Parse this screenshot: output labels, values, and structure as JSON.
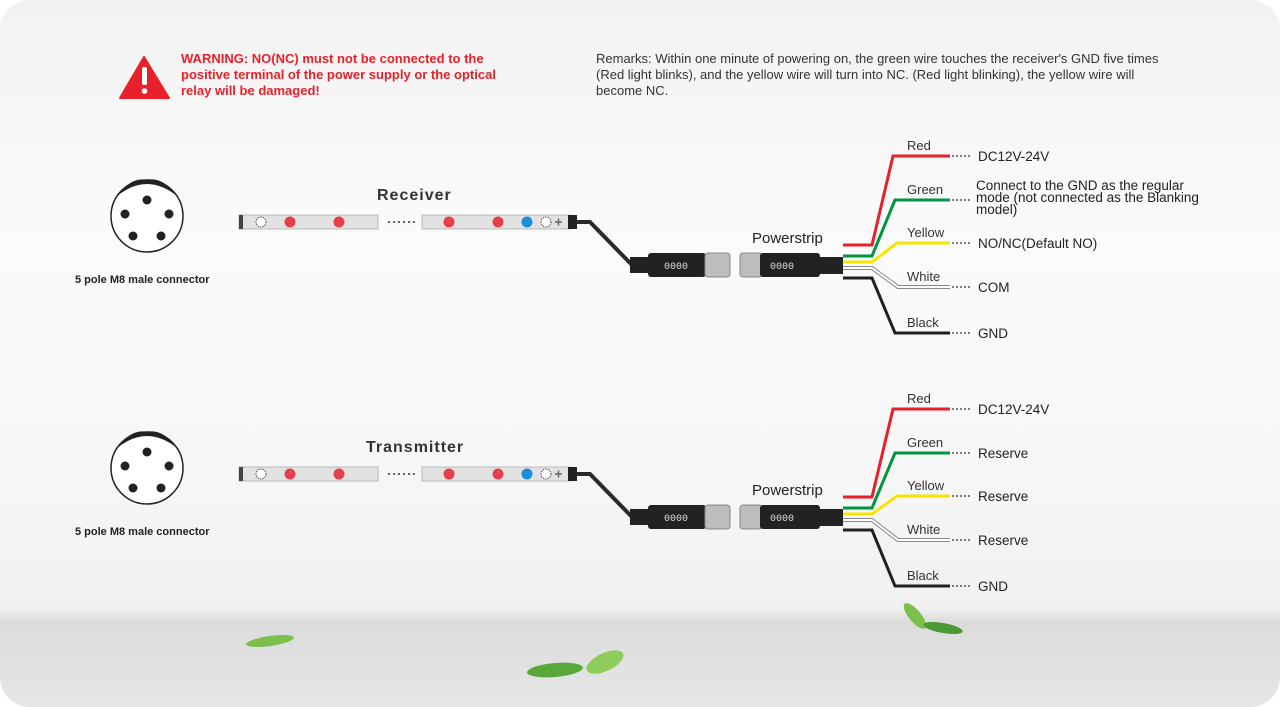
{
  "warning": {
    "icon": "warning-triangle-icon",
    "color": "#e8202a",
    "lines": [
      "WARNING: NO(NC)  must not be connected to the",
      "positive terminal of the power supply or the optical",
      "relay will be damaged!"
    ]
  },
  "remarks": {
    "lines": [
      "Remarks: Within one minute of powering on, the green wire touches the receiver's GND five times",
      "(Red light blinks), and the yellow wire will turn into NC. (Red light blinking), the yellow wire will",
      "become NC."
    ]
  },
  "panels": [
    {
      "title": "Receiver",
      "connector_label": "5 pole M8 male connector",
      "powerstrip_label": "Powerstrip",
      "connector_code": "0000",
      "wires": [
        {
          "color_name": "Red",
          "color": "#e8202a",
          "function": [
            "DC12V-24V"
          ]
        },
        {
          "color_name": "Green",
          "color": "#00963f",
          "function": [
            "Connect to the GND as the regular",
            "mode (not connected as the Blanking",
            "model)"
          ]
        },
        {
          "color_name": "Yellow",
          "color": "#f5e600",
          "function": [
            "NO/NC(Default NO)"
          ]
        },
        {
          "color_name": "White",
          "color": "#ffffff",
          "function": [
            "COM"
          ]
        },
        {
          "color_name": "Black",
          "color": "#231f20",
          "function": [
            "GND"
          ]
        }
      ]
    },
    {
      "title": "Transmitter",
      "connector_label": "5 pole M8 male connector",
      "powerstrip_label": "Powerstrip",
      "connector_code": "0000",
      "wires": [
        {
          "color_name": "Red",
          "color": "#e8202a",
          "function": [
            "DC12V-24V"
          ]
        },
        {
          "color_name": "Green",
          "color": "#00963f",
          "function": [
            "Reserve"
          ]
        },
        {
          "color_name": "Yellow",
          "color": "#f5e600",
          "function": [
            "Reserve"
          ]
        },
        {
          "color_name": "White",
          "color": "#ffffff",
          "function": [
            "Reserve"
          ]
        },
        {
          "color_name": "Black",
          "color": "#231f20",
          "function": [
            "GND"
          ]
        }
      ]
    }
  ],
  "led_colors": {
    "red": "#e5404b",
    "blue": "#1a8fd8"
  }
}
